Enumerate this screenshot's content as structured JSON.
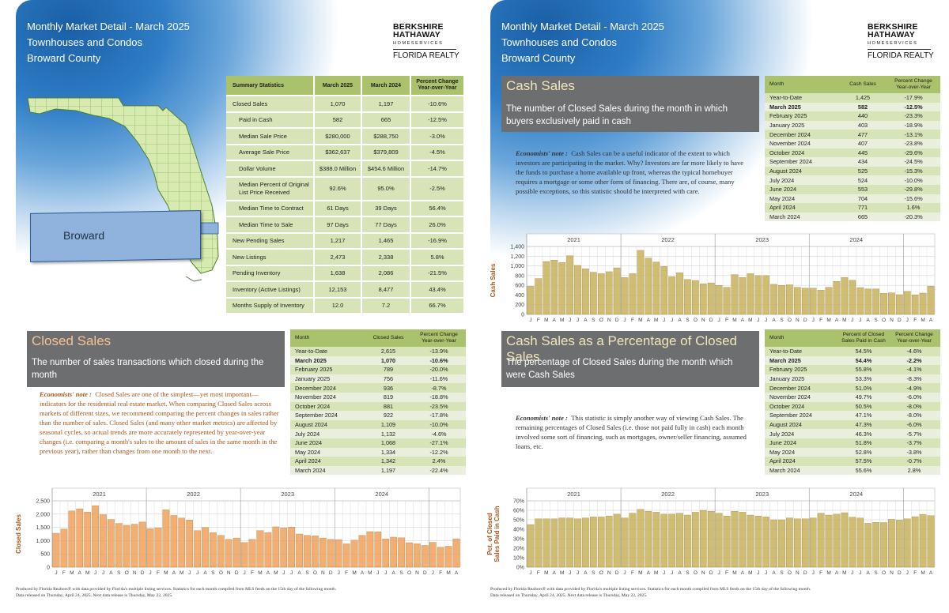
{
  "header": {
    "line1": "Monthly Market Detail - March 2025",
    "line2": "Townhouses and Condos",
    "line3": "Broward County"
  },
  "brand": {
    "line1": "BERKSHIRE",
    "line2": "HATHAWAY",
    "line3": "HOMESERVICES",
    "line4": "FLORIDA REALTY"
  },
  "map": {
    "label": "Broward"
  },
  "summary": {
    "headers": [
      "Summary Statistics",
      "March 2025",
      "March 2024",
      "Percent Change Year-over-Year"
    ],
    "rows": [
      {
        "label": "Closed Sales",
        "a": "1,070",
        "b": "1,197",
        "c": "-10.6%",
        "indent": false
      },
      {
        "label": "Paid in Cash",
        "a": "582",
        "b": "665",
        "c": "-12.5%",
        "indent": true
      },
      {
        "label": "Median Sale Price",
        "a": "$280,000",
        "b": "$288,750",
        "c": "-3.0%",
        "indent": true
      },
      {
        "label": "Average Sale Price",
        "a": "$362,637",
        "b": "$379,809",
        "c": "-4.5%",
        "indent": true
      },
      {
        "label": "Dollar Volume",
        "a": "$388.0 Million",
        "b": "$454.6 Million",
        "c": "-14.7%",
        "indent": true
      },
      {
        "label": "Median Percent of Original List Price Received",
        "a": "92.6%",
        "b": "95.0%",
        "c": "-2.5%",
        "indent": true
      },
      {
        "label": "Median Time to Contract",
        "a": "61 Days",
        "b": "39 Days",
        "c": "56.4%",
        "indent": true
      },
      {
        "label": "Median Time to Sale",
        "a": "97 Days",
        "b": "77 Days",
        "c": "26.0%",
        "indent": true
      },
      {
        "label": "New Pending Sales",
        "a": "1,217",
        "b": "1,465",
        "c": "-16.9%",
        "indent": false
      },
      {
        "label": "New Listings",
        "a": "2,473",
        "b": "2,338",
        "c": "5.8%",
        "indent": false
      },
      {
        "label": "Pending Inventory",
        "a": "1,638",
        "b": "2,086",
        "c": "-21.5%",
        "indent": false
      },
      {
        "label": "Inventory (Active Listings)",
        "a": "12,153",
        "b": "8,477",
        "c": "43.4%",
        "indent": false
      },
      {
        "label": "Months Supply of Inventory",
        "a": "12.0",
        "b": "7.2",
        "c": "66.7%",
        "indent": false
      }
    ]
  },
  "closed": {
    "title": "Closed Sales",
    "desc": "The number of sales transactions which closed during the month",
    "note_label": "Economists' note :",
    "note": "Closed Sales are one of the simplest—yet most important—indicators for the residential real estate market.  When comparing Closed Sales across markets of different sizes, we recommend comparing the percent changes in sales rather than the number of sales.  Closed Sales (and many other market metrics) are affected by seasonal cycles, so actual trends are more accurately represented by year-over-year changes (i.e. comparing a month's sales to the amount of sales in the same month in the previous year), rather than changes from one month to the next.",
    "headers": [
      "Month",
      "Closed Sales",
      "Percent Change Year-over-Year"
    ],
    "rows": [
      [
        "Year-to-Date",
        "2,615",
        "-13.9%"
      ],
      [
        "March 2025",
        "1,070",
        "-10.6%"
      ],
      [
        "February 2025",
        "789",
        "-20.0%"
      ],
      [
        "January 2025",
        "756",
        "-11.6%"
      ],
      [
        "December 2024",
        "936",
        "-8.7%"
      ],
      [
        "November 2024",
        "819",
        "-18.8%"
      ],
      [
        "October 2024",
        "881",
        "-23.5%"
      ],
      [
        "September 2024",
        "922",
        "-17.8%"
      ],
      [
        "August 2024",
        "1,109",
        "-10.0%"
      ],
      [
        "July 2024",
        "1,132",
        "-4.6%"
      ],
      [
        "June 2024",
        "1,068",
        "-27.1%"
      ],
      [
        "May 2024",
        "1,334",
        "-12.2%"
      ],
      [
        "April 2024",
        "1,342",
        "2.4%"
      ],
      [
        "March 2024",
        "1,197",
        "-22.4%"
      ]
    ]
  },
  "cash": {
    "title": "Cash Sales",
    "desc": "The number of Closed Sales during the month in which buyers exclusively paid in cash",
    "note_label": "Economists' note :",
    "note": "Cash Sales can be a useful indicator of the extent to which investors are participating in the market.  Why?  Investors are far more likely to have the funds to purchase a home available up front, whereas the typical homebuyer requires a mortgage or some other form of financing.  There are, of course, many possible exceptions, so this statistic should be interpreted with care.",
    "headers": [
      "Month",
      "Cash Sales",
      "Percent Change Year-over-Year"
    ],
    "rows": [
      [
        "Year-to-Date",
        "1,425",
        "-17.9%"
      ],
      [
        "March 2025",
        "582",
        "-12.5%"
      ],
      [
        "February 2025",
        "440",
        "-23.3%"
      ],
      [
        "January 2025",
        "403",
        "-18.9%"
      ],
      [
        "December 2024",
        "477",
        "-13.1%"
      ],
      [
        "November 2024",
        "407",
        "-23.8%"
      ],
      [
        "October 2024",
        "445",
        "-29.6%"
      ],
      [
        "September 2024",
        "434",
        "-24.5%"
      ],
      [
        "August 2024",
        "525",
        "-15.3%"
      ],
      [
        "July 2024",
        "524",
        "-10.0%"
      ],
      [
        "June 2024",
        "553",
        "-29.8%"
      ],
      [
        "May 2024",
        "704",
        "-15.6%"
      ],
      [
        "April 2024",
        "771",
        "1.6%"
      ],
      [
        "March 2024",
        "665",
        "-20.3%"
      ]
    ]
  },
  "pct": {
    "title": "Cash Sales as a Percentage of Closed Sales",
    "desc": "The percentage of Closed Sales during the month which were Cash Sales",
    "note_label": "Economists' note :",
    "note": "This statistic is simply another way of viewing Cash Sales.  The remaining percentages of Closed Sales (i.e. those not paid fully in cash) each month involved some sort of financing, such as mortgages, owner/seller financing, assumed loans, etc.",
    "headers": [
      "Month",
      "Percent of Closed Sales Paid in Cash",
      "Percent Change Year-over-Year"
    ],
    "rows": [
      [
        "Year-to-Date",
        "54.5%",
        "-4.6%"
      ],
      [
        "March 2025",
        "54.4%",
        "-2.2%"
      ],
      [
        "February 2025",
        "55.8%",
        "-4.1%"
      ],
      [
        "January 2025",
        "53.3%",
        "-8.3%"
      ],
      [
        "December 2024",
        "51.0%",
        "-4.9%"
      ],
      [
        "November 2024",
        "49.7%",
        "-6.0%"
      ],
      [
        "October 2024",
        "50.5%",
        "-8.0%"
      ],
      [
        "September 2024",
        "47.1%",
        "-8.0%"
      ],
      [
        "August 2024",
        "47.3%",
        "-6.0%"
      ],
      [
        "July 2024",
        "46.3%",
        "-5.7%"
      ],
      [
        "June 2024",
        "51.8%",
        "-3.7%"
      ],
      [
        "May 2024",
        "52.8%",
        "-3.8%"
      ],
      [
        "April 2024",
        "57.5%",
        "-0.7%"
      ],
      [
        "March 2024",
        "55.6%",
        "2.8%"
      ]
    ]
  },
  "footer": {
    "line1": "Produced by Florida Realtors® with data provided by Florida's multiple listing services. Statistics for each month compiled from MLS feeds on the 15th day of the following month.",
    "line2": "Data released on Thursday, April 24, 2025. Next data release is Thursday, May 22, 2025."
  },
  "chart_data": [
    {
      "type": "bar",
      "ylabel": "Closed Sales",
      "ylim": [
        0,
        2500
      ],
      "yticks": [
        "0",
        "500",
        "1,000",
        "1,500",
        "2,000",
        "2,500"
      ],
      "years": [
        "2021",
        "2022",
        "2023",
        "2024"
      ],
      "month_letters": [
        "J",
        "F",
        "M",
        "A",
        "M",
        "J",
        "J",
        "A",
        "S",
        "O",
        "N",
        "D"
      ],
      "color": "#f0a05a",
      "values": [
        1280,
        1440,
        2120,
        2200,
        2080,
        2320,
        1980,
        1800,
        1650,
        1580,
        1620,
        1700,
        1450,
        1480,
        2160,
        1950,
        1850,
        1780,
        1380,
        1500,
        1300,
        1200,
        1050,
        1100,
        930,
        1050,
        1380,
        1300,
        1520,
        1480,
        1510,
        1250,
        1200,
        1180,
        1100,
        1050,
        1040,
        880,
        1020,
        1200,
        1340,
        1330,
        1068,
        1132,
        1109,
        922,
        881,
        819,
        936,
        756,
        789,
        1070
      ]
    },
    {
      "type": "bar",
      "ylabel": "Cash Sales",
      "ylim": [
        0,
        1400
      ],
      "yticks": [
        "0",
        "200",
        "400",
        "600",
        "800",
        "1,000",
        "1,200",
        "1,400"
      ],
      "years": [
        "2021",
        "2022",
        "2023",
        "2024"
      ],
      "month_letters": [
        "J",
        "F",
        "M",
        "A",
        "M",
        "J",
        "J",
        "A",
        "S",
        "O",
        "N",
        "D"
      ],
      "color": "#c8b25c",
      "values": [
        580,
        740,
        1090,
        1120,
        1070,
        1210,
        1010,
        940,
        870,
        840,
        880,
        960,
        760,
        840,
        1320,
        1160,
        1080,
        990,
        780,
        860,
        720,
        700,
        630,
        650,
        600,
        560,
        820,
        760,
        840,
        800,
        800,
        620,
        600,
        610,
        560,
        540,
        540,
        500,
        560,
        680,
        760,
        704,
        553,
        524,
        525,
        434,
        445,
        407,
        477,
        403,
        440,
        582
      ]
    },
    {
      "type": "bar",
      "ylabel": "Pct. of Closed Sales Paid in Cash",
      "ylim": [
        0,
        70
      ],
      "yticks": [
        "0%",
        "10%",
        "20%",
        "30%",
        "40%",
        "50%",
        "60%",
        "70%"
      ],
      "years": [
        "2021",
        "2022",
        "2023",
        "2024"
      ],
      "month_letters": [
        "J",
        "F",
        "M",
        "A",
        "M",
        "J",
        "J",
        "A",
        "S",
        "O",
        "N",
        "D"
      ],
      "color": "#c8b25c",
      "values": [
        45,
        51,
        51,
        51,
        52,
        52,
        51,
        52,
        53,
        53,
        54,
        56,
        52,
        57,
        61,
        59,
        58,
        56,
        56,
        57,
        55,
        58,
        60,
        59,
        57,
        54,
        59,
        58,
        55,
        54,
        53,
        50,
        50,
        52,
        51,
        51,
        52,
        57,
        55,
        56,
        57.5,
        52.8,
        51.8,
        46.3,
        47.3,
        47.1,
        50.5,
        49.7,
        51,
        53.3,
        55.8,
        54.4
      ]
    }
  ]
}
